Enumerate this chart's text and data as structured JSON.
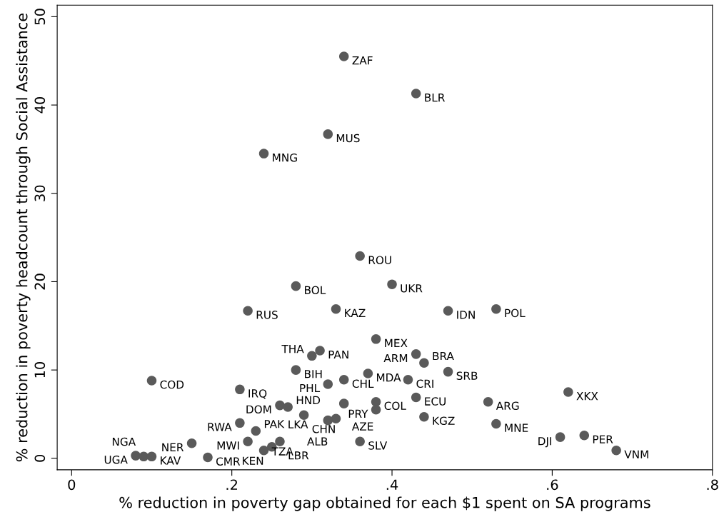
{
  "chart_data": {
    "type": "scatter",
    "xlabel": "% reduction in poverty gap obtained for each $1 spent on SA programs",
    "ylabel": "% reduction in poverty headcount through Social Assistance",
    "marker": "circle",
    "grid": false,
    "xlim": [
      -0.018,
      0.8
    ],
    "ylim": [
      -1.3,
      51.3
    ],
    "xticks": [
      0,
      {
        "value": 0.2,
        "label": ".2"
      },
      {
        "value": 0.4,
        "label": ".4"
      },
      {
        "value": 0.6,
        "label": ".6"
      },
      {
        "value": 0.8,
        "label": ".8"
      }
    ],
    "yticks": [
      0,
      10,
      20,
      30,
      40,
      50
    ],
    "series": [
      {
        "color": "#5a5a5a",
        "x": [
          0.34,
          0.43,
          0.32,
          0.24,
          0.36,
          0.28,
          0.4,
          0.22,
          0.33,
          0.47,
          0.53,
          0.38,
          0.31,
          0.3,
          0.43,
          0.44,
          0.28,
          0.47,
          0.1,
          0.37,
          0.34,
          0.32,
          0.42,
          0.21,
          0.62,
          0.43,
          0.52,
          0.26,
          0.27,
          0.34,
          0.38,
          0.38,
          0.29,
          0.33,
          0.32,
          0.44,
          0.53,
          0.21,
          0.23,
          0.26,
          0.22,
          0.25,
          0.24,
          0.15,
          0.36,
          0.17,
          0.61,
          0.64,
          0.68,
          0.08,
          0.09,
          0.1
        ],
        "values": [
          45.5,
          41.3,
          36.7,
          34.5,
          22.9,
          19.5,
          19.7,
          16.7,
          16.9,
          16.7,
          16.9,
          13.5,
          12.2,
          11.6,
          11.8,
          10.8,
          10.0,
          9.8,
          8.8,
          9.6,
          8.9,
          8.4,
          8.9,
          7.8,
          7.5,
          6.9,
          6.4,
          6.0,
          5.8,
          6.2,
          6.4,
          5.5,
          4.9,
          4.5,
          4.3,
          4.7,
          3.9,
          4.0,
          3.1,
          1.9,
          1.9,
          1.3,
          0.9,
          1.7,
          1.9,
          0.1,
          2.4,
          2.6,
          0.9,
          0.3,
          0.2,
          0.2
        ]
      }
    ],
    "annotations": [
      {
        "text": "ZAF",
        "x": 0.34,
        "y": 45.5
      },
      {
        "text": "BLR",
        "x": 0.43,
        "y": 41.3
      },
      {
        "text": "MUS",
        "x": 0.32,
        "y": 36.7
      },
      {
        "text": "MNG",
        "x": 0.24,
        "y": 34.5
      },
      {
        "text": "ROU",
        "x": 0.36,
        "y": 22.9
      },
      {
        "text": "BOL",
        "x": 0.28,
        "y": 19.5
      },
      {
        "text": "UKR",
        "x": 0.4,
        "y": 19.7
      },
      {
        "text": "RUS",
        "x": 0.22,
        "y": 16.7
      },
      {
        "text": "KAZ",
        "x": 0.33,
        "y": 16.9
      },
      {
        "text": "IDN",
        "x": 0.47,
        "y": 16.7
      },
      {
        "text": "POL",
        "x": 0.53,
        "y": 16.9
      },
      {
        "text": "MEX",
        "x": 0.38,
        "y": 13.5
      },
      {
        "text": "PAN",
        "x": 0.31,
        "y": 12.2
      },
      {
        "text": "THA",
        "x": 0.3,
        "y": 11.6
      },
      {
        "text": "ARM",
        "x": 0.43,
        "y": 11.8
      },
      {
        "text": "BRA",
        "x": 0.44,
        "y": 10.8
      },
      {
        "text": "BIH",
        "x": 0.28,
        "y": 10.0
      },
      {
        "text": "SRB",
        "x": 0.47,
        "y": 9.8
      },
      {
        "text": "COD",
        "x": 0.1,
        "y": 8.8
      },
      {
        "text": "MDA",
        "x": 0.37,
        "y": 9.6
      },
      {
        "text": "CHL",
        "x": 0.34,
        "y": 8.9
      },
      {
        "text": "PHL",
        "x": 0.32,
        "y": 8.4
      },
      {
        "text": "CRI",
        "x": 0.42,
        "y": 8.9
      },
      {
        "text": "IRQ",
        "x": 0.21,
        "y": 7.8
      },
      {
        "text": "XKX",
        "x": 0.62,
        "y": 7.5
      },
      {
        "text": "ECU",
        "x": 0.43,
        "y": 6.9
      },
      {
        "text": "ARG",
        "x": 0.52,
        "y": 6.4
      },
      {
        "text": "DOM",
        "x": 0.26,
        "y": 6.0
      },
      {
        "text": "HND",
        "x": 0.27,
        "y": 5.8
      },
      {
        "text": "AZE",
        "x": 0.34,
        "y": 6.2
      },
      {
        "text": "COL",
        "x": 0.38,
        "y": 6.4
      },
      {
        "text": "PRY",
        "x": 0.38,
        "y": 5.5
      },
      {
        "text": "CHN",
        "x": 0.29,
        "y": 4.9
      },
      {
        "text": "ALB",
        "x": 0.33,
        "y": 4.5
      },
      {
        "text": "LKA",
        "x": 0.32,
        "y": 4.3
      },
      {
        "text": "KGZ",
        "x": 0.44,
        "y": 4.7
      },
      {
        "text": "MNE",
        "x": 0.53,
        "y": 3.9
      },
      {
        "text": "RWA",
        "x": 0.21,
        "y": 4.0
      },
      {
        "text": "PAK",
        "x": 0.23,
        "y": 3.1
      },
      {
        "text": "LBR",
        "x": 0.26,
        "y": 1.9
      },
      {
        "text": "MWI",
        "x": 0.22,
        "y": 1.9
      },
      {
        "text": "KEN",
        "x": 0.25,
        "y": 1.3
      },
      {
        "text": "TZA",
        "x": 0.24,
        "y": 0.9
      },
      {
        "text": "NER",
        "x": 0.15,
        "y": 1.7
      },
      {
        "text": "SLV",
        "x": 0.36,
        "y": 1.9
      },
      {
        "text": "CMR",
        "x": 0.17,
        "y": 0.1
      },
      {
        "text": "DJI",
        "x": 0.61,
        "y": 2.4
      },
      {
        "text": "PER",
        "x": 0.64,
        "y": 2.6
      },
      {
        "text": "VNM",
        "x": 0.68,
        "y": 0.9
      },
      {
        "text": "UGA",
        "x": 0.08,
        "y": 0.3
      },
      {
        "text": "NGA",
        "x": 0.09,
        "y": 0.2
      },
      {
        "text": "KAV",
        "x": 0.1,
        "y": 0.2
      }
    ]
  }
}
